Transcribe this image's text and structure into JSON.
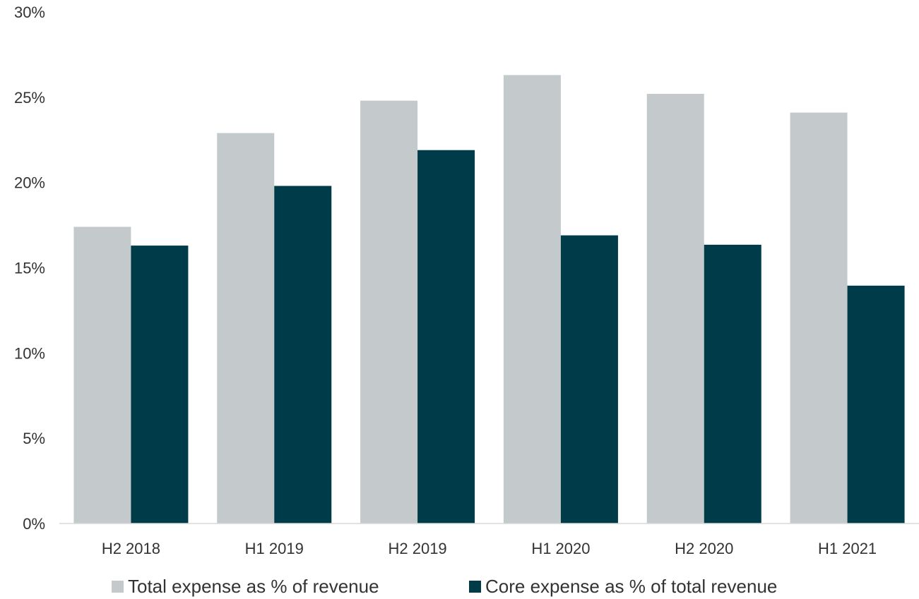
{
  "chart_data": {
    "type": "bar",
    "categories": [
      "H2 2018",
      "H1 2019",
      "H2 2019",
      "H1 2020",
      "H2 2020",
      "H1 2021"
    ],
    "series": [
      {
        "name": "Total expense as % of revenue",
        "color": "#c4cacc",
        "values": [
          17.4,
          22.9,
          24.8,
          26.3,
          25.2,
          24.1
        ]
      },
      {
        "name": "Core expense as % of total revenue",
        "color": "#003b49",
        "values": [
          16.3,
          19.8,
          21.9,
          16.9,
          16.35,
          13.95
        ]
      }
    ],
    "y_ticks": [
      "0%",
      "5%",
      "10%",
      "15%",
      "20%",
      "25%",
      "30%"
    ],
    "ylim": [
      0,
      30
    ],
    "grid": false,
    "legend_position": "bottom"
  }
}
